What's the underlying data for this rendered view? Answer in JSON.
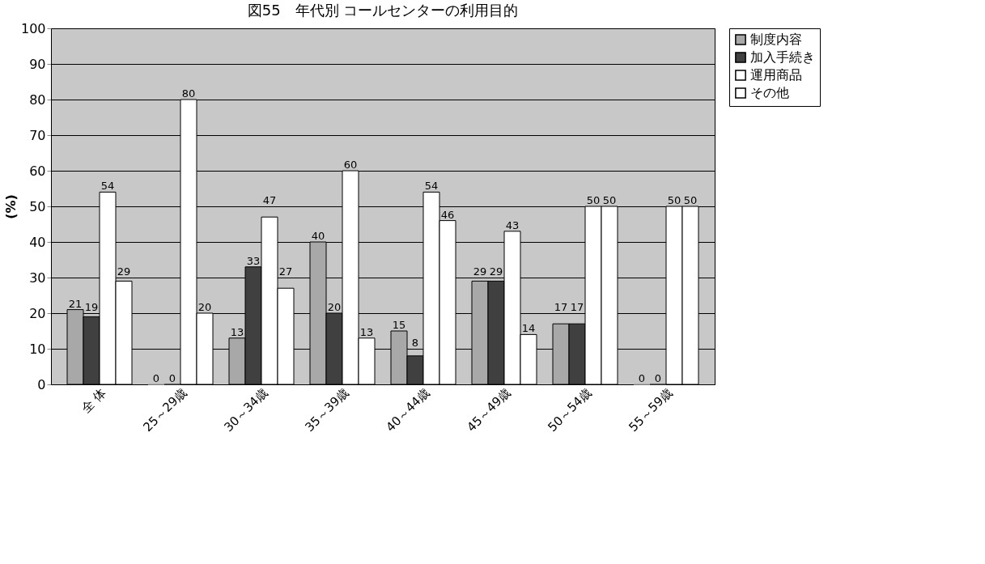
{
  "chart_data": {
    "type": "bar",
    "title": "図55　年代別 コールセンターの利用目的",
    "ylabel": "(%)",
    "categories": [
      "全 体",
      "25～29歳",
      "30～34歳",
      "35～39歳",
      "40～44歳",
      "45～49歳",
      "50～54歳",
      "55～59歳"
    ],
    "series": [
      {
        "name": "制度内容",
        "color": "#a8a8a8",
        "values": [
          21,
          0,
          13,
          40,
          15,
          29,
          17,
          0
        ]
      },
      {
        "name": "加入手続き",
        "color": "#404040",
        "values": [
          19,
          0,
          33,
          20,
          8,
          29,
          17,
          0
        ]
      },
      {
        "name": "運用商品",
        "color": "#ffffff",
        "values": [
          54,
          80,
          47,
          60,
          54,
          43,
          50,
          50
        ]
      },
      {
        "name": "その他",
        "color": "#ffffff",
        "values": [
          29,
          20,
          27,
          13,
          46,
          14,
          50,
          50
        ]
      }
    ],
    "ylim": [
      0,
      100
    ],
    "yticks": [
      0,
      10,
      20,
      30,
      40,
      50,
      60,
      70,
      80,
      90,
      100
    ],
    "grid": "y",
    "legend": "right",
    "data_labels": true
  }
}
